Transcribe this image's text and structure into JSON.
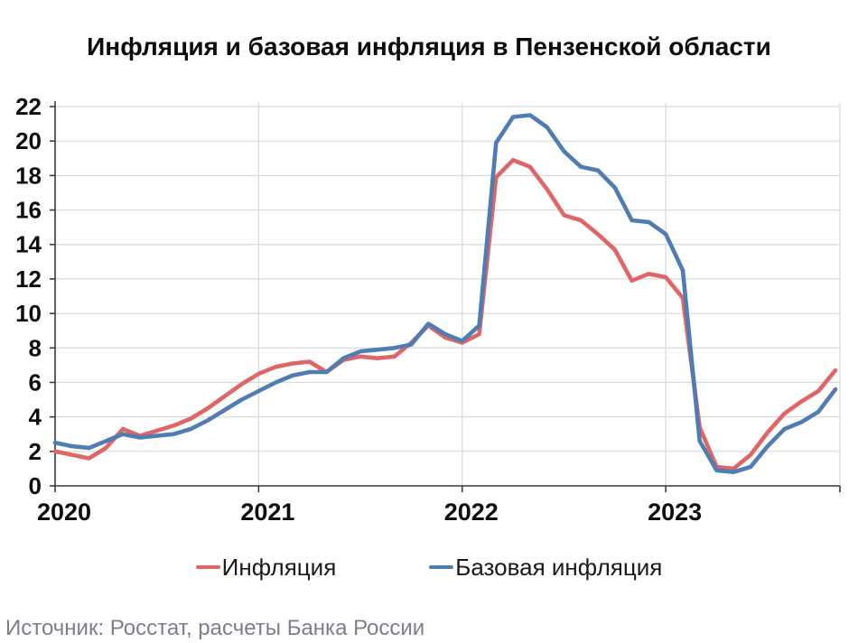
{
  "title": "Инфляция и базовая инфляция в Пензенской области",
  "source": "Источник: Росстат, расчеты Банка России",
  "legend": [
    {
      "label": "Инфляция",
      "color": "#e06666"
    },
    {
      "label": "Базовая инфляция",
      "color": "#4e7db4"
    }
  ],
  "colors": {
    "inflation_line": "#e06666",
    "core_line": "#4e7db4",
    "grid": "#d9d9d9",
    "axis": "#3a3a3a",
    "tick_label": "#0d0d0d",
    "source_text": "#7b7f88"
  },
  "chart_data": {
    "type": "line",
    "title": "Инфляция и базовая инфляция в Пензенской области",
    "xlabel": "",
    "ylabel": "",
    "ylim": [
      0,
      22
    ],
    "y_tick_step": 2,
    "y_tick_labels": [
      "0",
      "2",
      "4",
      "6",
      "8",
      "10",
      "12",
      "14",
      "16",
      "18",
      "20",
      "22"
    ],
    "x_tick_labels": [
      "2020",
      "2021",
      "2022",
      "2023"
    ],
    "grid": true,
    "legend_position": "bottom",
    "frequency": "monthly",
    "x_months": [
      "2020-01",
      "2020-02",
      "2020-03",
      "2020-04",
      "2020-05",
      "2020-06",
      "2020-07",
      "2020-08",
      "2020-09",
      "2020-10",
      "2020-11",
      "2020-12",
      "2021-01",
      "2021-02",
      "2021-03",
      "2021-04",
      "2021-05",
      "2021-06",
      "2021-07",
      "2021-08",
      "2021-09",
      "2021-10",
      "2021-11",
      "2021-12",
      "2022-01",
      "2022-02",
      "2022-03",
      "2022-04",
      "2022-05",
      "2022-06",
      "2022-07",
      "2022-08",
      "2022-09",
      "2022-10",
      "2022-11",
      "2022-12",
      "2023-01",
      "2023-02",
      "2023-03",
      "2023-04",
      "2023-05",
      "2023-06",
      "2023-07",
      "2023-08",
      "2023-09",
      "2023-10",
      "2023-11"
    ],
    "series": [
      {
        "name": "Инфляция",
        "color": "#e06666",
        "values": [
          2.0,
          1.8,
          1.6,
          2.2,
          3.3,
          2.9,
          3.2,
          3.5,
          3.9,
          4.5,
          5.2,
          5.9,
          6.5,
          6.9,
          7.1,
          7.2,
          6.6,
          7.3,
          7.5,
          7.4,
          7.5,
          8.3,
          9.3,
          8.6,
          8.3,
          8.8,
          17.9,
          18.9,
          18.5,
          17.2,
          15.7,
          15.4,
          14.6,
          13.7,
          11.9,
          12.3,
          12.1,
          10.9,
          3.4,
          1.1,
          1.0,
          1.8,
          3.1,
          4.2,
          4.9,
          5.5,
          6.7
        ]
      },
      {
        "name": "Базовая инфляция",
        "color": "#4e7db4",
        "values": [
          2.5,
          2.3,
          2.2,
          2.6,
          3.0,
          2.8,
          2.9,
          3.0,
          3.3,
          3.8,
          4.4,
          5.0,
          5.5,
          6.0,
          6.4,
          6.6,
          6.6,
          7.4,
          7.8,
          7.9,
          8.0,
          8.2,
          9.4,
          8.8,
          8.4,
          9.3,
          19.9,
          21.4,
          21.5,
          20.8,
          19.4,
          18.5,
          18.3,
          17.3,
          15.4,
          15.3,
          14.6,
          12.5,
          2.6,
          0.9,
          0.8,
          1.1,
          2.3,
          3.3,
          3.7,
          4.3,
          5.6
        ]
      }
    ]
  }
}
